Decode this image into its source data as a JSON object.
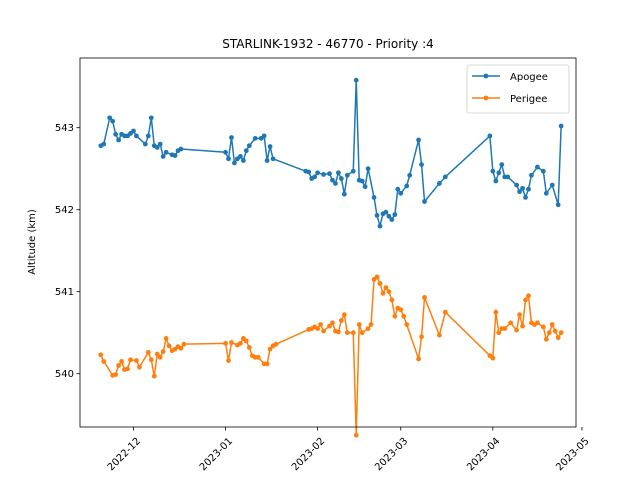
{
  "chart_data": {
    "type": "line",
    "title": "STARLINK-1932 - 46770 - Priority :4",
    "xlabel": "",
    "ylabel": "Altitude (km)",
    "x_type": "date",
    "xlim": [
      "2022-11-13",
      "2023-04-29"
    ],
    "ylim": [
      539.35,
      543.85
    ],
    "x_ticks": [
      {
        "date": "2022-12-01",
        "label": "2022-12"
      },
      {
        "date": "2023-01-01",
        "label": "2023-01"
      },
      {
        "date": "2023-02-01",
        "label": "2023-02"
      },
      {
        "date": "2023-03-01",
        "label": "2023-03"
      },
      {
        "date": "2023-04-01",
        "label": "2023-04"
      },
      {
        "date": "2023-05-01",
        "label": "2023-05"
      }
    ],
    "y_ticks": [
      {
        "value": 540,
        "label": "540"
      },
      {
        "value": 541,
        "label": "541"
      },
      {
        "value": 542,
        "label": "542"
      },
      {
        "value": 543,
        "label": "543"
      }
    ],
    "grid": false,
    "legend_position": "top-right",
    "series": [
      {
        "name": "Apogee",
        "color": "#1f77b4",
        "points": [
          [
            "2022-11-20",
            542.78
          ],
          [
            "2022-11-21",
            542.8
          ],
          [
            "2022-11-23",
            543.12
          ],
          [
            "2022-11-24",
            543.08
          ],
          [
            "2022-11-25",
            542.92
          ],
          [
            "2022-11-26",
            542.85
          ],
          [
            "2022-11-27",
            542.92
          ],
          [
            "2022-11-28",
            542.9
          ],
          [
            "2022-11-29",
            542.9
          ],
          [
            "2022-11-30",
            542.93
          ],
          [
            "2022-12-01",
            542.96
          ],
          [
            "2022-12-02",
            542.9
          ],
          [
            "2022-12-05",
            542.8
          ],
          [
            "2022-12-06",
            542.9
          ],
          [
            "2022-12-07",
            543.12
          ],
          [
            "2022-12-08",
            542.78
          ],
          [
            "2022-12-09",
            542.76
          ],
          [
            "2022-12-10",
            542.8
          ],
          [
            "2022-12-11",
            542.65
          ],
          [
            "2022-12-12",
            542.7
          ],
          [
            "2022-12-14",
            542.67
          ],
          [
            "2022-12-15",
            542.66
          ],
          [
            "2022-12-16",
            542.72
          ],
          [
            "2022-12-17",
            542.74
          ],
          [
            "2023-01-01",
            542.7
          ],
          [
            "2023-01-02",
            542.62
          ],
          [
            "2023-01-03",
            542.88
          ],
          [
            "2023-01-04",
            542.57
          ],
          [
            "2023-01-05",
            542.62
          ],
          [
            "2023-01-06",
            542.65
          ],
          [
            "2023-01-07",
            542.6
          ],
          [
            "2023-01-08",
            542.72
          ],
          [
            "2023-01-09",
            542.78
          ],
          [
            "2023-01-11",
            542.87
          ],
          [
            "2023-01-13",
            542.87
          ],
          [
            "2023-01-14",
            542.9
          ],
          [
            "2023-01-15",
            542.6
          ],
          [
            "2023-01-16",
            542.77
          ],
          [
            "2023-01-17",
            542.62
          ],
          [
            "2023-01-28",
            542.47
          ],
          [
            "2023-01-29",
            542.46
          ],
          [
            "2023-01-30",
            542.38
          ],
          [
            "2023-01-31",
            542.4
          ],
          [
            "2023-02-01",
            542.45
          ],
          [
            "2023-02-03",
            542.43
          ],
          [
            "2023-02-05",
            542.44
          ],
          [
            "2023-02-06",
            542.36
          ],
          [
            "2023-02-07",
            542.32
          ],
          [
            "2023-02-08",
            542.45
          ],
          [
            "2023-02-09",
            542.38
          ],
          [
            "2023-02-10",
            542.19
          ],
          [
            "2023-02-11",
            542.42
          ],
          [
            "2023-02-13",
            542.47
          ],
          [
            "2023-02-14",
            543.58
          ],
          [
            "2023-02-15",
            542.36
          ],
          [
            "2023-02-16",
            542.35
          ],
          [
            "2023-02-17",
            542.28
          ],
          [
            "2023-02-18",
            542.5
          ],
          [
            "2023-02-20",
            542.15
          ],
          [
            "2023-02-21",
            541.93
          ],
          [
            "2023-02-22",
            541.8
          ],
          [
            "2023-02-23",
            541.95
          ],
          [
            "2023-02-24",
            541.97
          ],
          [
            "2023-02-25",
            541.92
          ],
          [
            "2023-02-26",
            541.88
          ],
          [
            "2023-02-27",
            541.94
          ],
          [
            "2023-02-28",
            542.25
          ],
          [
            "2023-03-01",
            542.2
          ],
          [
            "2023-03-03",
            542.29
          ],
          [
            "2023-03-04",
            542.42
          ],
          [
            "2023-03-07",
            542.85
          ],
          [
            "2023-03-08",
            542.55
          ],
          [
            "2023-03-09",
            542.1
          ],
          [
            "2023-03-14",
            542.32
          ],
          [
            "2023-03-16",
            542.4
          ],
          [
            "2023-03-31",
            542.9
          ],
          [
            "2023-04-01",
            542.47
          ],
          [
            "2023-04-02",
            542.35
          ],
          [
            "2023-04-03",
            542.45
          ],
          [
            "2023-04-04",
            542.55
          ],
          [
            "2023-04-05",
            542.4
          ],
          [
            "2023-04-06",
            542.4
          ],
          [
            "2023-04-09",
            542.3
          ],
          [
            "2023-04-10",
            542.22
          ],
          [
            "2023-04-11",
            542.26
          ],
          [
            "2023-04-12",
            542.15
          ],
          [
            "2023-04-13",
            542.25
          ],
          [
            "2023-04-14",
            542.42
          ],
          [
            "2023-04-16",
            542.52
          ],
          [
            "2023-04-18",
            542.47
          ],
          [
            "2023-04-19",
            542.2
          ],
          [
            "2023-04-21",
            542.3
          ],
          [
            "2023-04-23",
            542.06
          ],
          [
            "2023-04-24",
            543.02
          ]
        ]
      },
      {
        "name": "Perigee",
        "color": "#ff7f0e",
        "points": [
          [
            "2022-11-20",
            540.23
          ],
          [
            "2022-11-21",
            540.15
          ],
          [
            "2022-11-24",
            539.98
          ],
          [
            "2022-11-25",
            539.99
          ],
          [
            "2022-11-26",
            540.1
          ],
          [
            "2022-11-27",
            540.15
          ],
          [
            "2022-11-28",
            540.05
          ],
          [
            "2022-11-29",
            540.06
          ],
          [
            "2022-11-30",
            540.17
          ],
          [
            "2022-12-02",
            540.16
          ],
          [
            "2022-12-03",
            540.08
          ],
          [
            "2022-12-06",
            540.26
          ],
          [
            "2022-12-07",
            540.17
          ],
          [
            "2022-12-08",
            539.97
          ],
          [
            "2022-12-09",
            540.24
          ],
          [
            "2022-12-10",
            540.2
          ],
          [
            "2022-12-11",
            540.27
          ],
          [
            "2022-12-12",
            540.43
          ],
          [
            "2022-12-13",
            540.34
          ],
          [
            "2022-12-14",
            540.28
          ],
          [
            "2022-12-15",
            540.3
          ],
          [
            "2022-12-16",
            540.33
          ],
          [
            "2022-12-17",
            540.31
          ],
          [
            "2022-12-18",
            540.36
          ],
          [
            "2023-01-01",
            540.37
          ],
          [
            "2023-01-02",
            540.16
          ],
          [
            "2023-01-03",
            540.38
          ],
          [
            "2023-01-05",
            540.35
          ],
          [
            "2023-01-06",
            540.37
          ],
          [
            "2023-01-07",
            540.43
          ],
          [
            "2023-01-08",
            540.4
          ],
          [
            "2023-01-09",
            540.32
          ],
          [
            "2023-01-10",
            540.22
          ],
          [
            "2023-01-11",
            540.2
          ],
          [
            "2023-01-12",
            540.2
          ],
          [
            "2023-01-14",
            540.12
          ],
          [
            "2023-01-15",
            540.12
          ],
          [
            "2023-01-16",
            540.3
          ],
          [
            "2023-01-17",
            540.34
          ],
          [
            "2023-01-18",
            540.36
          ],
          [
            "2023-01-29",
            540.54
          ],
          [
            "2023-01-30",
            540.55
          ],
          [
            "2023-01-31",
            540.57
          ],
          [
            "2023-02-01",
            540.55
          ],
          [
            "2023-02-02",
            540.6
          ],
          [
            "2023-02-03",
            540.52
          ],
          [
            "2023-02-05",
            540.58
          ],
          [
            "2023-02-06",
            540.62
          ],
          [
            "2023-02-07",
            540.52
          ],
          [
            "2023-02-08",
            540.51
          ],
          [
            "2023-02-09",
            540.65
          ],
          [
            "2023-02-10",
            540.72
          ],
          [
            "2023-02-11",
            540.5
          ],
          [
            "2023-02-13",
            540.5
          ],
          [
            "2023-02-14",
            539.25
          ],
          [
            "2023-02-15",
            540.6
          ],
          [
            "2023-02-16",
            540.5
          ],
          [
            "2023-02-18",
            540.55
          ],
          [
            "2023-02-19",
            540.6
          ],
          [
            "2023-02-20",
            541.15
          ],
          [
            "2023-02-21",
            541.18
          ],
          [
            "2023-02-22",
            541.1
          ],
          [
            "2023-02-23",
            540.98
          ],
          [
            "2023-02-24",
            541.05
          ],
          [
            "2023-02-25",
            541.0
          ],
          [
            "2023-02-26",
            540.9
          ],
          [
            "2023-02-27",
            540.7
          ],
          [
            "2023-02-28",
            540.8
          ],
          [
            "2023-03-01",
            540.78
          ],
          [
            "2023-03-02",
            540.7
          ],
          [
            "2023-03-03",
            540.6
          ],
          [
            "2023-03-07",
            540.18
          ],
          [
            "2023-03-08",
            540.45
          ],
          [
            "2023-03-09",
            540.93
          ],
          [
            "2023-03-14",
            540.47
          ],
          [
            "2023-03-16",
            540.75
          ],
          [
            "2023-03-31",
            540.22
          ],
          [
            "2023-04-01",
            540.19
          ],
          [
            "2023-04-02",
            540.75
          ],
          [
            "2023-04-03",
            540.5
          ],
          [
            "2023-04-04",
            540.55
          ],
          [
            "2023-04-05",
            540.55
          ],
          [
            "2023-04-07",
            540.62
          ],
          [
            "2023-04-09",
            540.53
          ],
          [
            "2023-04-10",
            540.72
          ],
          [
            "2023-04-11",
            540.58
          ],
          [
            "2023-04-12",
            540.9
          ],
          [
            "2023-04-13",
            540.95
          ],
          [
            "2023-04-14",
            540.62
          ],
          [
            "2023-04-15",
            540.6
          ],
          [
            "2023-04-16",
            540.62
          ],
          [
            "2023-04-18",
            540.57
          ],
          [
            "2023-04-19",
            540.42
          ],
          [
            "2023-04-20",
            540.5
          ],
          [
            "2023-04-21",
            540.6
          ],
          [
            "2023-04-22",
            540.52
          ],
          [
            "2023-04-23",
            540.44
          ],
          [
            "2023-04-24",
            540.5
          ]
        ]
      }
    ]
  }
}
